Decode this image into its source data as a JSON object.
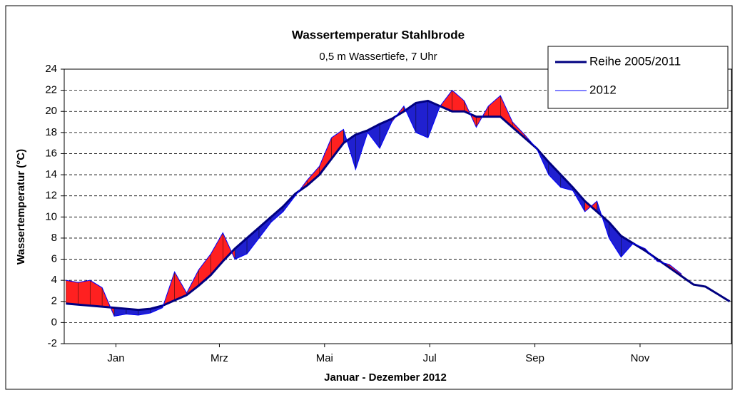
{
  "chart_data": {
    "type": "line",
    "title": "Wassertemperatur Stahlbrode",
    "subtitle": "0,5 m Wassertiefe, 7 Uhr",
    "x_label": "Januar - Dezember 2012",
    "y_label": "Wassertemperatur  (°C)",
    "x": [
      -14,
      -7,
      0,
      7,
      14,
      21,
      28,
      35,
      42,
      49,
      56,
      63,
      70,
      77,
      84,
      91,
      98,
      105,
      112,
      119,
      126,
      133,
      140,
      147,
      154,
      161,
      168,
      175,
      182,
      189,
      196,
      203,
      210,
      217,
      224,
      231,
      238,
      245,
      252,
      259,
      266,
      273,
      280,
      287,
      294,
      301,
      308,
      315,
      322,
      329,
      336,
      343,
      350,
      357,
      364,
      371
    ],
    "series": [
      {
        "name": "Reihe 2005/2011",
        "color": "#000080",
        "width": 3,
        "values": [
          1.8,
          1.7,
          1.6,
          1.5,
          1.4,
          1.3,
          1.2,
          1.3,
          1.6,
          2.1,
          2.6,
          3.5,
          4.5,
          5.8,
          7.0,
          8.0,
          9.0,
          10.0,
          11.0,
          12.2,
          13.0,
          14.0,
          15.5,
          17.0,
          17.8,
          18.2,
          18.8,
          19.3,
          20.0,
          20.8,
          21.0,
          20.5,
          20.0,
          20.0,
          19.5,
          19.5,
          19.5,
          18.5,
          17.5,
          16.5,
          15.2,
          14.0,
          12.8,
          11.5,
          10.5,
          9.5,
          8.2,
          7.5,
          6.8,
          6.0,
          5.2,
          4.4,
          3.6,
          3.4,
          2.7,
          2.0
        ]
      },
      {
        "name": "2012",
        "color": "#0000ff",
        "width": 1,
        "values": [
          4.0,
          3.8,
          4.0,
          3.3,
          0.6,
          0.8,
          0.7,
          0.9,
          1.4,
          4.8,
          2.8,
          5.0,
          6.5,
          8.5,
          6.0,
          6.5,
          8.0,
          9.5,
          10.5,
          12.0,
          13.5,
          14.8,
          17.5,
          18.3,
          14.5,
          18.0,
          16.5,
          19.0,
          20.5,
          18.0,
          17.5,
          20.5,
          22.0,
          21.0,
          18.5,
          20.5,
          21.5,
          19.0,
          17.8,
          16.5,
          14.0,
          12.8,
          12.5,
          10.5,
          11.5,
          8.0,
          6.2,
          7.5,
          7.0,
          5.8,
          5.5,
          4.6,
          null,
          null,
          null,
          null
        ]
      }
    ],
    "above_color": "#ff2020",
    "below_color": "#2020d0",
    "xlim": [
      -15,
      372
    ],
    "xticks": [
      {
        "value": 15,
        "label": "Jan"
      },
      {
        "value": 75,
        "label": "Mrz"
      },
      {
        "value": 136,
        "label": "Mai"
      },
      {
        "value": 197,
        "label": "Jul"
      },
      {
        "value": 258,
        "label": "Sep"
      },
      {
        "value": 319,
        "label": "Nov"
      }
    ],
    "ylim": [
      -2,
      24
    ],
    "yticks": [
      -2,
      0,
      2,
      4,
      6,
      8,
      10,
      12,
      14,
      16,
      18,
      20,
      22,
      24
    ],
    "grid": true,
    "legend": "top-right"
  }
}
